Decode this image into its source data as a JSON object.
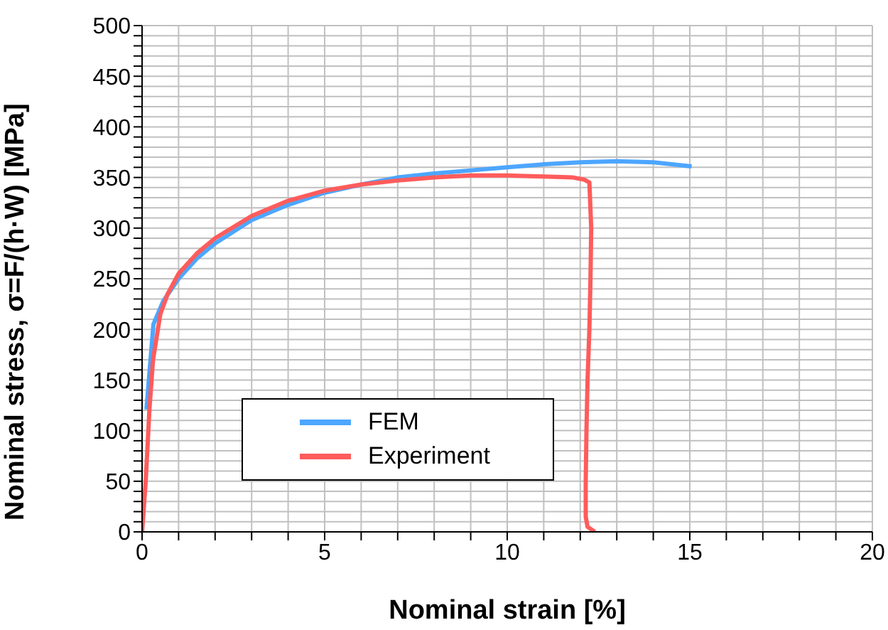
{
  "chart_data": {
    "type": "line",
    "xlabel": "Nominal strain [%]",
    "ylabel": "Nominal stress, σ=F/(h·W)  [MPa]",
    "xlim": [
      0,
      20
    ],
    "xticks": [
      0,
      {
        "value": 1,
        "label": null
      },
      {
        "value": 2,
        "label": null
      },
      {
        "value": 3,
        "label": null
      },
      {
        "value": 4,
        "label": null
      },
      5,
      {
        "value": 6,
        "label": null
      },
      {
        "value": 7,
        "label": null
      },
      {
        "value": 8,
        "label": null
      },
      {
        "value": 9,
        "label": null
      },
      10,
      {
        "value": 11,
        "label": null
      },
      {
        "value": 12,
        "label": null
      },
      {
        "value": 13,
        "label": null
      },
      {
        "value": 14,
        "label": null
      },
      15,
      {
        "value": 16,
        "label": null
      },
      {
        "value": 17,
        "label": null
      },
      {
        "value": 18,
        "label": null
      },
      {
        "value": 19,
        "label": null
      },
      20
    ],
    "ylim": [
      0,
      500
    ],
    "yticks": [
      0,
      {
        "value": 10,
        "label": null
      },
      {
        "value": 20,
        "label": null
      },
      {
        "value": 30,
        "label": null
      },
      {
        "value": 40,
        "label": null
      },
      50,
      {
        "value": 60,
        "label": null
      },
      {
        "value": 70,
        "label": null
      },
      {
        "value": 80,
        "label": null
      },
      {
        "value": 90,
        "label": null
      },
      100,
      {
        "value": 110,
        "label": null
      },
      {
        "value": 120,
        "label": null
      },
      {
        "value": 130,
        "label": null
      },
      {
        "value": 140,
        "label": null
      },
      150,
      {
        "value": 160,
        "label": null
      },
      {
        "value": 170,
        "label": null
      },
      {
        "value": 180,
        "label": null
      },
      {
        "value": 190,
        "label": null
      },
      200,
      {
        "value": 210,
        "label": null
      },
      {
        "value": 220,
        "label": null
      },
      {
        "value": 230,
        "label": null
      },
      {
        "value": 240,
        "label": null
      },
      250,
      {
        "value": 260,
        "label": null
      },
      {
        "value": 270,
        "label": null
      },
      {
        "value": 280,
        "label": null
      },
      {
        "value": 290,
        "label": null
      },
      300,
      {
        "value": 310,
        "label": null
      },
      {
        "value": 320,
        "label": null
      },
      {
        "value": 330,
        "label": null
      },
      {
        "value": 340,
        "label": null
      },
      350,
      {
        "value": 360,
        "label": null
      },
      {
        "value": 370,
        "label": null
      },
      {
        "value": 380,
        "label": null
      },
      {
        "value": 390,
        "label": null
      },
      400,
      {
        "value": 410,
        "label": null
      },
      {
        "value": 420,
        "label": null
      },
      {
        "value": 430,
        "label": null
      },
      {
        "value": 440,
        "label": null
      },
      450,
      {
        "value": 460,
        "label": null
      },
      {
        "value": 470,
        "label": null
      },
      {
        "value": 480,
        "label": null
      },
      {
        "value": 490,
        "label": null
      },
      500
    ],
    "grid": true,
    "legend": "bottom left",
    "marker": "none",
    "line_style": "solid",
    "series": [
      {
        "name": "FEM",
        "color": "#4da6ff",
        "x": [
          0.12,
          0.31,
          0.58,
          1,
          1.5,
          2,
          3,
          4,
          5,
          6,
          7,
          8,
          9,
          10,
          11,
          12,
          13,
          14,
          15.05
        ],
        "values": [
          121,
          205,
          228,
          250,
          270,
          285,
          308,
          323,
          335,
          343,
          350,
          354,
          357,
          360,
          363,
          365,
          366,
          365,
          361
        ]
      },
      {
        "name": "Experiment",
        "color": "#ff5c5c",
        "x": [
          0,
          0.1,
          0.2,
          0.3,
          0.5,
          0.7,
          1,
          1.5,
          2,
          3,
          4,
          5,
          6,
          7,
          8,
          9,
          10,
          11,
          11.8,
          12.1,
          12.25,
          12.3,
          12.28,
          12.25,
          12.2,
          12.17,
          12.15,
          12.15,
          12.2,
          12.4
        ],
        "values": [
          0,
          50,
          120,
          170,
          215,
          235,
          255,
          275,
          290,
          312,
          327,
          337,
          343,
          347,
          350,
          352,
          352,
          351,
          350,
          348,
          345,
          300,
          250,
          200,
          150,
          100,
          50,
          15,
          5,
          0
        ]
      }
    ]
  }
}
